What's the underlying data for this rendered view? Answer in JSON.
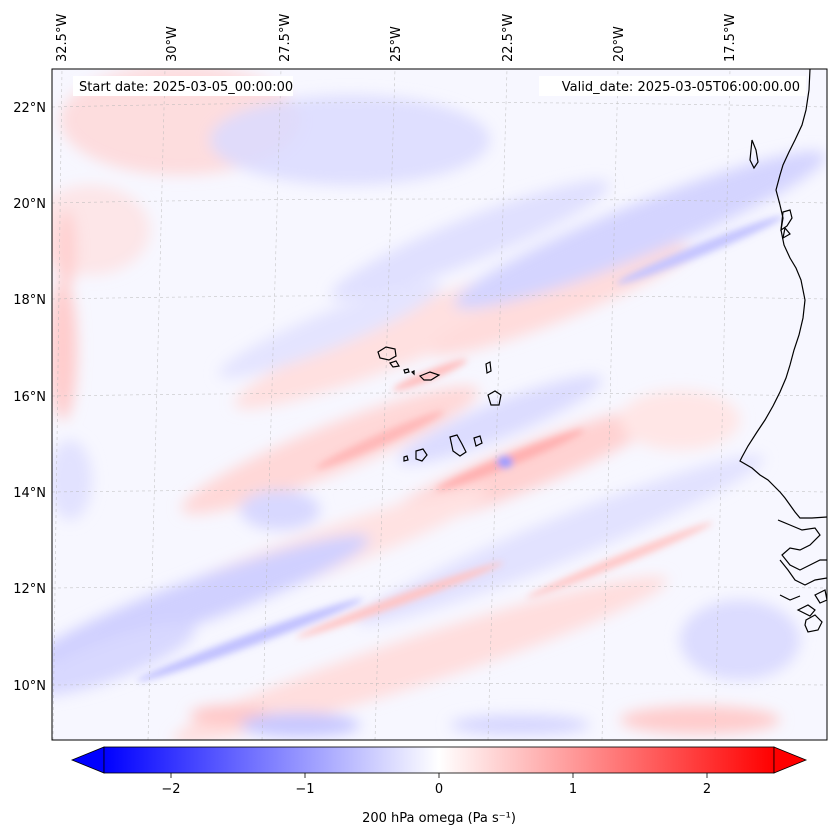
{
  "map": {
    "start_date_label": "Start date: 2025-03-05_00:00:00",
    "valid_date_label": "Valid_date: 2025-03-05T06:00:00.00",
    "lon_labels": [
      "32.5°W",
      "30°W",
      "27.5°W",
      "25°W",
      "22.5°W",
      "20°W",
      "17.5°W"
    ],
    "lat_labels": [
      "22°N",
      "20°N",
      "18°N",
      "16°N",
      "14°N",
      "12°N",
      "10°N"
    ],
    "gridlines": "dashed",
    "coastline_color": "#000000"
  },
  "colorbar": {
    "label": "200 hPa omega (Pa s⁻¹)",
    "tick_labels": [
      "−2",
      "−1",
      "0",
      "1",
      "2"
    ],
    "tick_values": [
      -2,
      -1,
      0,
      1,
      2
    ],
    "range": [
      -2.6,
      2.6
    ],
    "colormap": "bwr",
    "low_color": "#0000ff",
    "mid_color": "#ffffff",
    "high_color": "#ff0000"
  }
}
